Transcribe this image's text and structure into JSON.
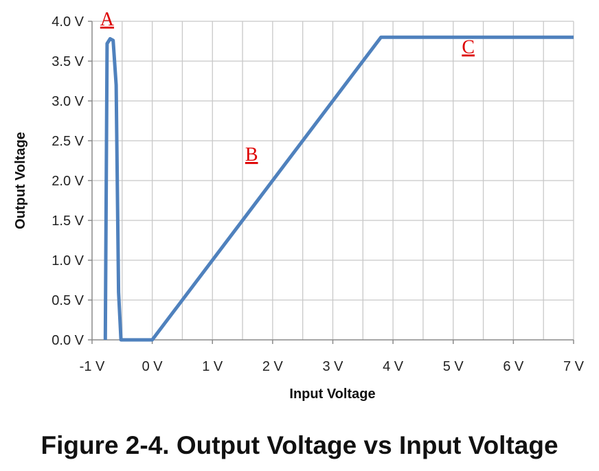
{
  "caption": "Figure 2-4. Output Voltage vs Input Voltage",
  "colors": {
    "series": "#4f81bd",
    "gridline": "#c8c8c8",
    "annotation": "#dd0000"
  },
  "chart_data": {
    "type": "line",
    "title": "",
    "xlabel": "Input Voltage",
    "ylabel": "Output Voltage",
    "xlim": [
      -1,
      7
    ],
    "ylim": [
      0,
      4
    ],
    "grid": true,
    "legend": "none",
    "x_ticks": [
      {
        "value": -1,
        "label": "-1 V"
      },
      {
        "value": 0,
        "label": "0 V"
      },
      {
        "value": 1,
        "label": "1 V"
      },
      {
        "value": 2,
        "label": "2 V"
      },
      {
        "value": 3,
        "label": "3 V"
      },
      {
        "value": 4,
        "label": "4 V"
      },
      {
        "value": 5,
        "label": "5 V"
      },
      {
        "value": 6,
        "label": "6 V"
      },
      {
        "value": 7,
        "label": "7 V"
      }
    ],
    "y_ticks": [
      {
        "value": 0,
        "label": "0.0 V"
      },
      {
        "value": 0.5,
        "label": "0.5 V"
      },
      {
        "value": 1,
        "label": "1.0 V"
      },
      {
        "value": 1.5,
        "label": "1.5 V"
      },
      {
        "value": 2,
        "label": "2.0 V"
      },
      {
        "value": 2.5,
        "label": "2.5 V"
      },
      {
        "value": 3,
        "label": "3.0 V"
      },
      {
        "value": 3.5,
        "label": "3.5 V"
      },
      {
        "value": 4,
        "label": "4.0 V"
      }
    ],
    "series": [
      {
        "x": [
          -0.78,
          -0.75,
          -0.7,
          -0.65,
          -0.6,
          -0.56,
          -0.52,
          -0.5,
          0,
          3.8,
          7
        ],
        "y": [
          0,
          3.72,
          3.78,
          3.76,
          3.2,
          0.6,
          0,
          0,
          0,
          3.8,
          3.8
        ]
      }
    ],
    "annotations": [
      {
        "text": "A",
        "x": -0.75,
        "y": 3.95
      },
      {
        "text": "B",
        "x": 1.65,
        "y": 2.25
      },
      {
        "text": "C",
        "x": 5.25,
        "y": 3.6
      }
    ]
  }
}
